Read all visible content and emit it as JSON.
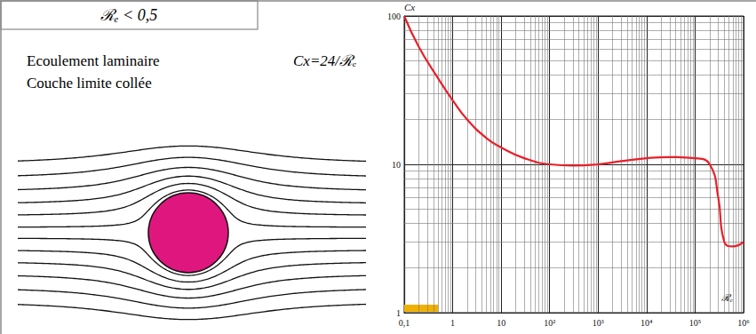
{
  "header": {
    "title": "ℛₑ < 0,5"
  },
  "texts": {
    "flow": [
      "Ecoulement laminaire",
      "Couche limite collée"
    ],
    "formula": "Cx=24/ℛₑ"
  },
  "diagram": {
    "circle_color": "#e0167f"
  },
  "chart_data": {
    "type": "line",
    "x_label": "ℛₑ",
    "y_label": "Cx",
    "log": true,
    "grid": true,
    "xlim": [
      0.1,
      1000000
    ],
    "ylim": [
      1,
      100
    ],
    "xticks": [
      {
        "value": 0.1,
        "label": "0,1"
      },
      1,
      10,
      {
        "value": 100,
        "label": "10²"
      },
      {
        "value": 1000,
        "label": "10³"
      },
      {
        "value": 10000,
        "label": "10⁴"
      },
      {
        "value": 100000,
        "label": "10⁵"
      },
      {
        "value": 1000000,
        "label": "10⁶"
      }
    ],
    "yticks": [
      1,
      10,
      100
    ],
    "x": [
      0.1,
      0.2,
      0.5,
      1,
      2,
      5,
      10,
      30,
      100,
      300,
      1000,
      3000,
      10000,
      30000,
      100000,
      200000,
      300000,
      400000,
      600000,
      1000000
    ],
    "series": [
      {
        "color": "#e8202a",
        "values": [
          100,
          62,
          38,
          27,
          20,
          15,
          13,
          11,
          10,
          9.8,
          10,
          10.5,
          11,
          11.2,
          11,
          10,
          6,
          3,
          2.8,
          3
        ]
      }
    ],
    "range_bar": {
      "x": [
        0.1,
        0.5
      ],
      "color": "#f0b000"
    }
  }
}
